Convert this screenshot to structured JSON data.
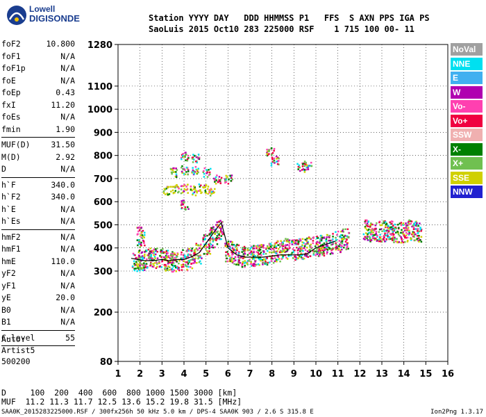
{
  "logo": {
    "line1": "Lowell",
    "line2": "DIGISONDE"
  },
  "header": {
    "line1": "Station YYYY DAY   DDD HHMMSS P1   FFS  S AXN PPS IGA PS",
    "line2": "SaoLuis 2015 Oct10 283 225000 RSF    1 715 100 00- 11"
  },
  "params": [
    [
      {
        "k": "foF2",
        "v": "10.800"
      },
      {
        "k": "foF1",
        "v": "N/A"
      },
      {
        "k": "foF1p",
        "v": "N/A"
      },
      {
        "k": "foE",
        "v": "N/A"
      },
      {
        "k": "foEp",
        "v": "0.43"
      },
      {
        "k": "fxI",
        "v": "11.20"
      },
      {
        "k": "foEs",
        "v": "N/A"
      },
      {
        "k": "fmin",
        "v": "1.90"
      }
    ],
    [
      {
        "k": "MUF(D)",
        "v": "31.50"
      },
      {
        "k": "M(D)",
        "v": "2.92"
      },
      {
        "k": "D",
        "v": "N/A"
      }
    ],
    [
      {
        "k": "h`F",
        "v": "340.0"
      },
      {
        "k": "h`F2",
        "v": "340.0"
      },
      {
        "k": "h`E",
        "v": "N/A"
      },
      {
        "k": "h`Es",
        "v": "N/A"
      }
    ],
    [
      {
        "k": "hmF2",
        "v": "N/A"
      },
      {
        "k": "hmF1",
        "v": "N/A"
      },
      {
        "k": "hmE",
        "v": "110.0"
      },
      {
        "k": "yF2",
        "v": "N/A"
      },
      {
        "k": "yF1",
        "v": "N/A"
      },
      {
        "k": "yE",
        "v": "20.0"
      },
      {
        "k": "B0",
        "v": "N/A"
      },
      {
        "k": "B1",
        "v": "N/A"
      }
    ],
    [
      {
        "k": "C-level",
        "v": "55"
      }
    ]
  ],
  "auto": {
    "line1": "Auto:",
    "line2": "Artist5",
    "line3": "500200"
  },
  "legend": [
    {
      "label": "NoVal",
      "color": "#a0a0a0"
    },
    {
      "label": "NNE",
      "color": "#00e0f0"
    },
    {
      "label": "E",
      "color": "#40b0f0"
    },
    {
      "label": "W",
      "color": "#b000b0"
    },
    {
      "label": "Vo-",
      "color": "#ff40b0"
    },
    {
      "label": "Vo+",
      "color": "#f00040"
    },
    {
      "label": "SSW",
      "color": "#f0b0b0"
    },
    {
      "label": "X-",
      "color": "#008000"
    },
    {
      "label": "X+",
      "color": "#70c050"
    },
    {
      "label": "SSE",
      "color": "#d0d000"
    },
    {
      "label": "NNW",
      "color": "#2020d0"
    }
  ],
  "bottom": {
    "line1": "D     100  200  400  600  800 1000 1500 3000 [km]",
    "line2": "MUF  11.2 11.3 11.7 12.5 13.6 15.2 19.8 31.5 [MHz]"
  },
  "footer": "SAA0K_2015283225000.RSF / 300fx256h 50 kHz 5.0 km / DPS-4 SAA0K 903 / 2.6 S 315.8 E",
  "version": "Ion2Png 1.3.17",
  "chart_data": {
    "type": "scatter",
    "title": "",
    "xlabel": "",
    "ylabel": "",
    "xlim": [
      1,
      16
    ],
    "ylim": [
      80,
      1280
    ],
    "xticks": [
      1,
      2,
      3,
      4,
      5,
      6,
      7,
      8,
      9,
      10,
      11,
      12,
      13,
      14,
      15,
      16
    ],
    "yticks": [
      80,
      200,
      300,
      400,
      500,
      600,
      700,
      800,
      900,
      1000,
      1100,
      1280
    ],
    "x": [
      1.8,
      2.0,
      2.3,
      2.6,
      3.0,
      3.3,
      3.6,
      4.0,
      4.3,
      4.6,
      5.0,
      5.3,
      5.6,
      6.0,
      6.3,
      6.6,
      7.0,
      7.3,
      7.6,
      8.0,
      8.3,
      8.6,
      9.0,
      9.3,
      9.6,
      10.0,
      10.3,
      10.6,
      11.0,
      11.3,
      12.3,
      12.6,
      13.0,
      13.3,
      13.6,
      14.0,
      14.3,
      14.6,
      3.2,
      3.6,
      4.0,
      4.4,
      4.8,
      5.2,
      3.5,
      4.0,
      4.5,
      5.0,
      5.5,
      6.0,
      4.0,
      4.5,
      7.9,
      8.1,
      9.3,
      9.6,
      4.0,
      2.0
    ],
    "y": [
      340,
      350,
      360,
      360,
      355,
      350,
      345,
      350,
      360,
      380,
      420,
      450,
      480,
      390,
      375,
      365,
      370,
      370,
      375,
      380,
      390,
      400,
      395,
      400,
      405,
      410,
      415,
      420,
      430,
      440,
      480,
      470,
      475,
      480,
      470,
      470,
      480,
      475,
      650,
      660,
      660,
      650,
      660,
      650,
      730,
      740,
      740,
      730,
      700,
      700,
      800,
      790,
      820,
      780,
      750,
      760,
      590,
      450
    ],
    "series": [
      {
        "name": "Vo-",
        "color": "#ff40b0"
      },
      {
        "name": "Vo+",
        "color": "#f00040"
      },
      {
        "name": "W",
        "color": "#b000b0"
      },
      {
        "name": "SSE",
        "color": "#d0d000"
      },
      {
        "name": "NNE",
        "color": "#00e0f0"
      },
      {
        "name": "X-",
        "color": "#008000"
      },
      {
        "name": "X+",
        "color": "#70c050"
      }
    ],
    "trace": {
      "x": [
        1.6,
        1.9,
        2.2,
        2.6,
        3.0,
        3.3,
        3.7,
        4.0,
        4.3,
        4.7,
        5.0,
        5.3,
        5.7,
        6.0,
        6.4,
        6.8,
        7.2,
        7.6,
        8.0,
        8.4,
        8.8,
        9.2,
        9.6,
        10.0,
        10.3,
        10.6,
        10.9
      ],
      "y": [
        355,
        350,
        345,
        345,
        350,
        345,
        350,
        350,
        360,
        380,
        420,
        460,
        510,
        400,
        370,
        360,
        360,
        360,
        365,
        370,
        370,
        370,
        375,
        400,
        410,
        420,
        430
      ],
      "color": "#000000"
    }
  }
}
